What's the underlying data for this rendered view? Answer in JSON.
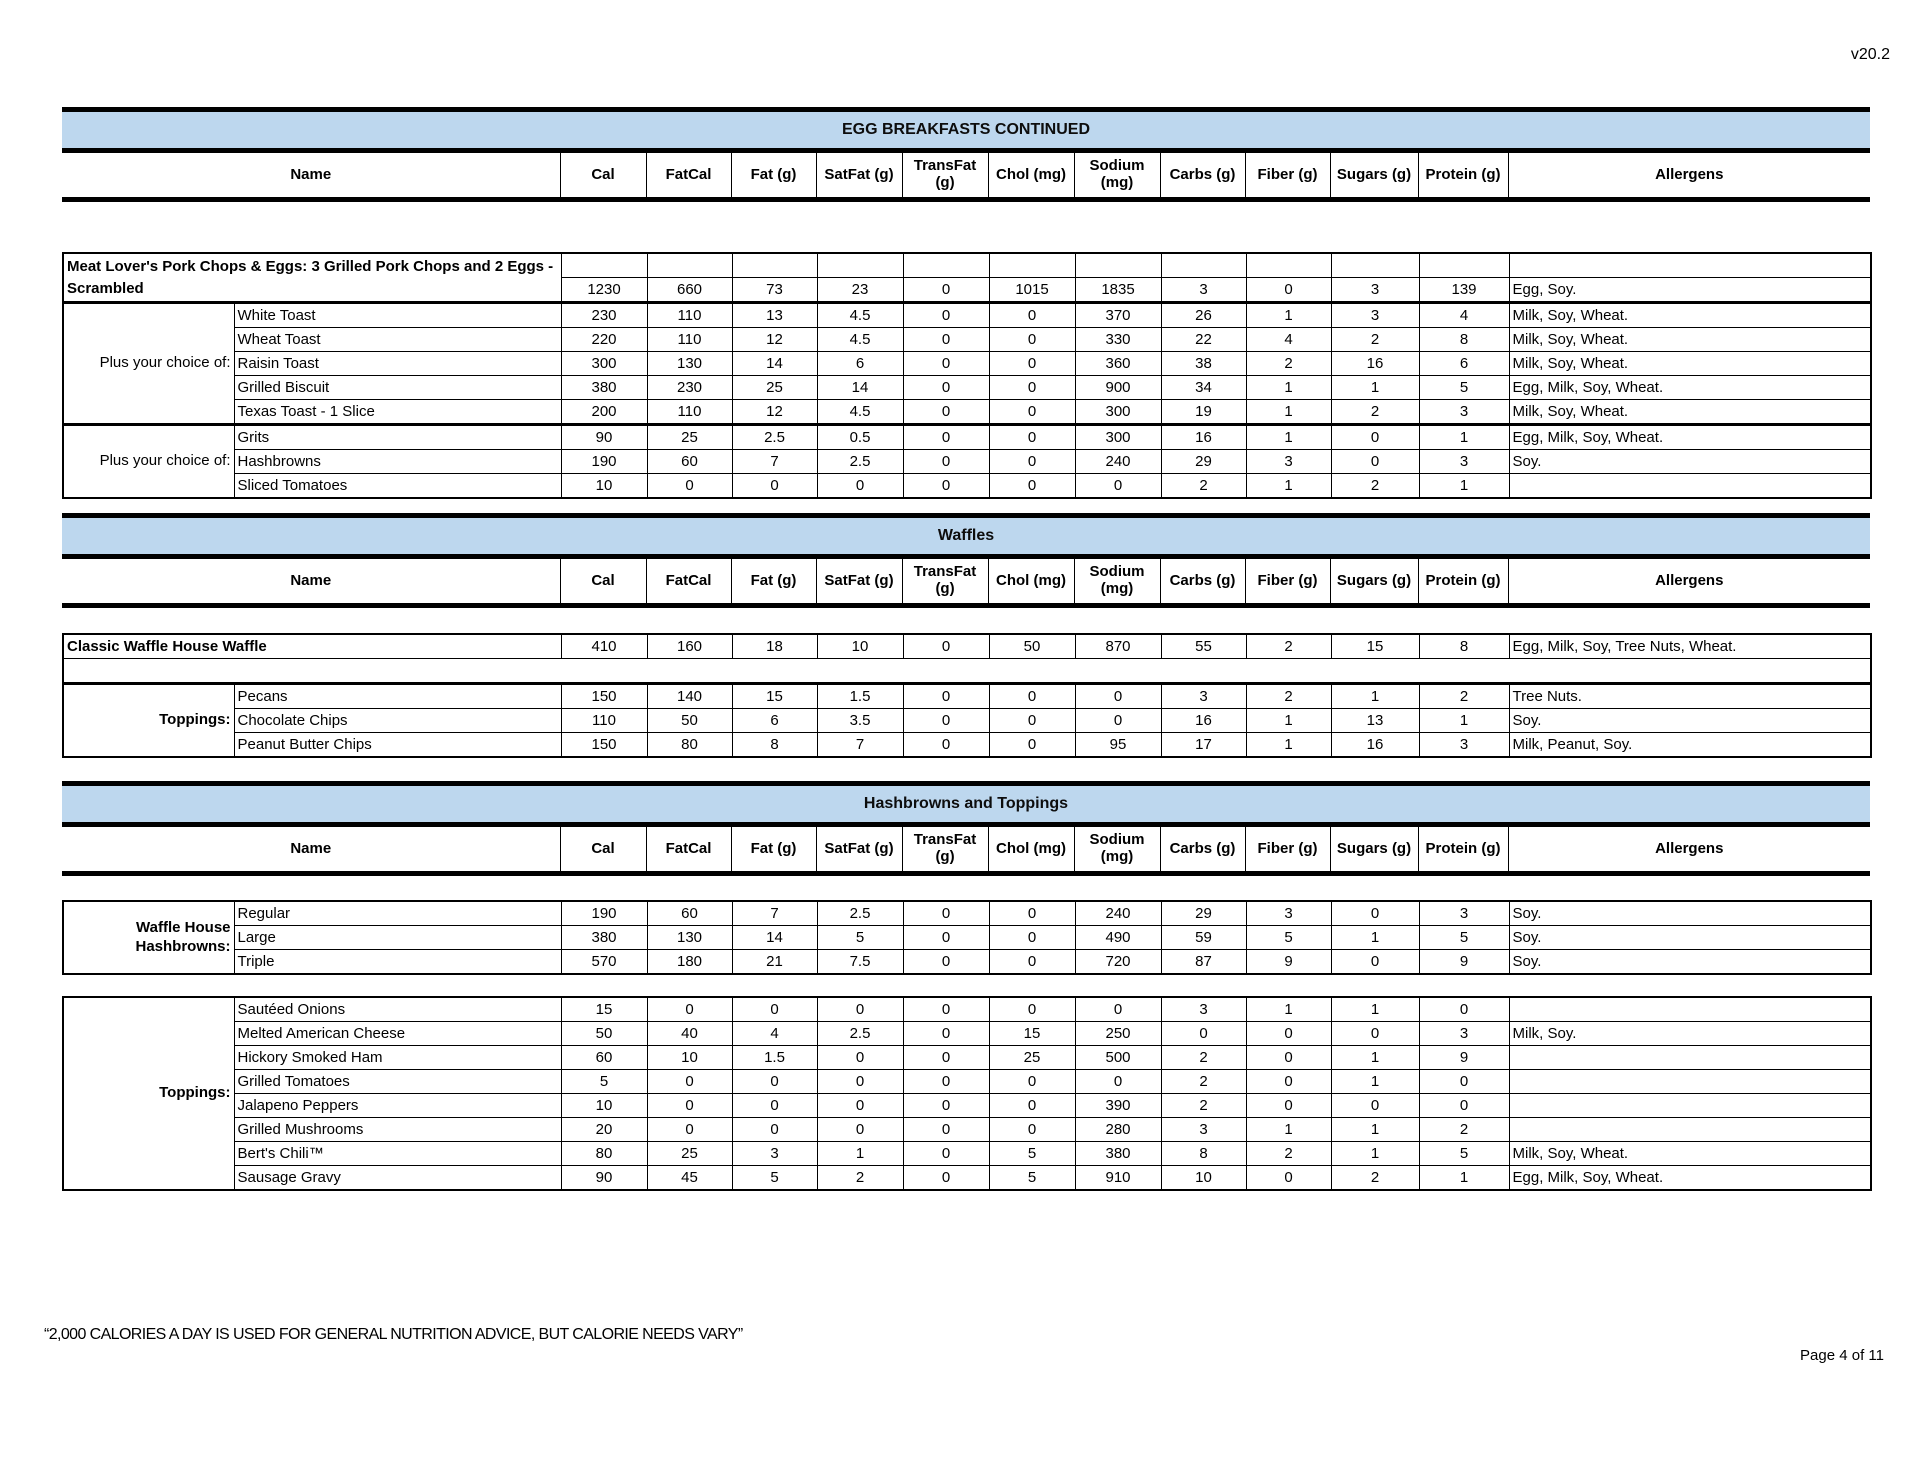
{
  "page": {
    "version": "v20.2",
    "footer_quote": "“2,000 CALORIES A DAY IS USED FOR GENERAL NUTRITION ADVICE, BUT CALORIE NEEDS VARY”",
    "page_number": "Page 4 of 11"
  },
  "colors": {
    "section_bar_blue": "#BDD7EE",
    "border_black": "#000000"
  },
  "table_columns": {
    "name": "Name",
    "nutrients": [
      "Cal",
      "FatCal",
      "Fat (g)",
      "SatFat (g)",
      "TransFat (g)",
      "Chol (mg)",
      "Sodium (mg)",
      "Carbs (g)",
      "Fiber (g)",
      "Sugars (g)",
      "Protein (g)"
    ],
    "allergens": "Allergens"
  },
  "sections": [
    {
      "id": "egg-breakfasts-continued",
      "title": "EGG BREAKFASTS CONTINUED",
      "tables": [
        {
          "groups": [
            {
              "kind": "item",
              "rows": [
                {
                  "name": "Meat Lover's Pork Chops & Eggs: 3 Grilled Pork Chops and 2 Eggs - Scrambled",
                  "tall": true,
                  "bold": true,
                  "values": [
                    "1230",
                    "660",
                    "73",
                    "23",
                    "0",
                    "1015",
                    "1835",
                    "3",
                    "0",
                    "3",
                    "139"
                  ],
                  "allergens": "Egg, Soy."
                }
              ]
            },
            {
              "kind": "labeled",
              "label": "Plus your choice of:",
              "label_bold": false,
              "rows": [
                {
                  "name": "White Toast",
                  "values": [
                    "230",
                    "110",
                    "13",
                    "4.5",
                    "0",
                    "0",
                    "370",
                    "26",
                    "1",
                    "3",
                    "4"
                  ],
                  "allergens": "Milk, Soy, Wheat."
                },
                {
                  "name": "Wheat Toast",
                  "values": [
                    "220",
                    "110",
                    "12",
                    "4.5",
                    "0",
                    "0",
                    "330",
                    "22",
                    "4",
                    "2",
                    "8"
                  ],
                  "allergens": "Milk, Soy, Wheat."
                },
                {
                  "name": "Raisin Toast",
                  "values": [
                    "300",
                    "130",
                    "14",
                    "6",
                    "0",
                    "0",
                    "360",
                    "38",
                    "2",
                    "16",
                    "6"
                  ],
                  "allergens": "Milk, Soy, Wheat."
                },
                {
                  "name": "Grilled Biscuit",
                  "values": [
                    "380",
                    "230",
                    "25",
                    "14",
                    "0",
                    "0",
                    "900",
                    "34",
                    "1",
                    "1",
                    "5"
                  ],
                  "allergens": "Egg, Milk, Soy, Wheat."
                },
                {
                  "name": "Texas Toast - 1 Slice",
                  "values": [
                    "200",
                    "110",
                    "12",
                    "4.5",
                    "0",
                    "0",
                    "300",
                    "19",
                    "1",
                    "2",
                    "3"
                  ],
                  "allergens": "Milk, Soy, Wheat."
                }
              ]
            },
            {
              "kind": "labeled",
              "label": "Plus your choice of:",
              "label_bold": false,
              "rows": [
                {
                  "name": "Grits",
                  "values": [
                    "90",
                    "25",
                    "2.5",
                    "0.5",
                    "0",
                    "0",
                    "300",
                    "16",
                    "1",
                    "0",
                    "1"
                  ],
                  "allergens": "Egg, Milk, Soy, Wheat."
                },
                {
                  "name": "Hashbrowns",
                  "values": [
                    "190",
                    "60",
                    "7",
                    "2.5",
                    "0",
                    "0",
                    "240",
                    "29",
                    "3",
                    "0",
                    "3"
                  ],
                  "allergens": "Soy."
                },
                {
                  "name": "Sliced Tomatoes",
                  "values": [
                    "10",
                    "0",
                    "0",
                    "0",
                    "0",
                    "0",
                    "0",
                    "2",
                    "1",
                    "2",
                    "1"
                  ],
                  "allergens": ""
                }
              ]
            }
          ]
        }
      ]
    },
    {
      "id": "waffles",
      "title": "Waffles",
      "tables": [
        {
          "groups": [
            {
              "kind": "item",
              "rows": [
                {
                  "name": "Classic Waffle House Waffle",
                  "tall": false,
                  "bold": true,
                  "values": [
                    "410",
                    "160",
                    "18",
                    "10",
                    "0",
                    "50",
                    "870",
                    "55",
                    "2",
                    "15",
                    "8"
                  ],
                  "allergens": "Egg, Milk, Soy, Tree Nuts, Wheat."
                }
              ]
            },
            {
              "kind": "spacer"
            },
            {
              "kind": "labeled",
              "label": "Toppings:",
              "label_bold": true,
              "rows": [
                {
                  "name": "Pecans",
                  "values": [
                    "150",
                    "140",
                    "15",
                    "1.5",
                    "0",
                    "0",
                    "0",
                    "3",
                    "2",
                    "1",
                    "2"
                  ],
                  "allergens": "Tree Nuts."
                },
                {
                  "name": "Chocolate Chips",
                  "values": [
                    "110",
                    "50",
                    "6",
                    "3.5",
                    "0",
                    "0",
                    "0",
                    "16",
                    "1",
                    "13",
                    "1"
                  ],
                  "allergens": "Soy."
                },
                {
                  "name": "Peanut Butter Chips",
                  "values": [
                    "150",
                    "80",
                    "8",
                    "7",
                    "0",
                    "0",
                    "95",
                    "17",
                    "1",
                    "16",
                    "3"
                  ],
                  "allergens": "Milk, Peanut, Soy."
                }
              ]
            }
          ]
        }
      ]
    },
    {
      "id": "hashbrowns-and-toppings",
      "title": "Hashbrowns and Toppings",
      "tables": [
        {
          "groups": [
            {
              "kind": "labeled",
              "label": "Waffle House Hashbrowns:",
              "label_bold": true,
              "rows": [
                {
                  "name": "Regular",
                  "values": [
                    "190",
                    "60",
                    "7",
                    "2.5",
                    "0",
                    "0",
                    "240",
                    "29",
                    "3",
                    "0",
                    "3"
                  ],
                  "allergens": "Soy."
                },
                {
                  "name": "Large",
                  "values": [
                    "380",
                    "130",
                    "14",
                    "5",
                    "0",
                    "0",
                    "490",
                    "59",
                    "5",
                    "1",
                    "5"
                  ],
                  "allergens": "Soy."
                },
                {
                  "name": "Triple",
                  "values": [
                    "570",
                    "180",
                    "21",
                    "7.5",
                    "0",
                    "0",
                    "720",
                    "87",
                    "9",
                    "0",
                    "9"
                  ],
                  "allergens": "Soy."
                }
              ]
            }
          ]
        },
        {
          "groups": [
            {
              "kind": "labeled",
              "label": "Toppings:",
              "label_bold": true,
              "rows": [
                {
                  "name": "Sautéed Onions",
                  "values": [
                    "15",
                    "0",
                    "0",
                    "0",
                    "0",
                    "0",
                    "0",
                    "3",
                    "1",
                    "1",
                    "0"
                  ],
                  "allergens": ""
                },
                {
                  "name": "Melted American Cheese",
                  "values": [
                    "50",
                    "40",
                    "4",
                    "2.5",
                    "0",
                    "15",
                    "250",
                    "0",
                    "0",
                    "0",
                    "3"
                  ],
                  "allergens": "Milk, Soy."
                },
                {
                  "name": "Hickory Smoked Ham",
                  "values": [
                    "60",
                    "10",
                    "1.5",
                    "0",
                    "0",
                    "25",
                    "500",
                    "2",
                    "0",
                    "1",
                    "9"
                  ],
                  "allergens": ""
                },
                {
                  "name": "Grilled Tomatoes",
                  "values": [
                    "5",
                    "0",
                    "0",
                    "0",
                    "0",
                    "0",
                    "0",
                    "2",
                    "0",
                    "1",
                    "0"
                  ],
                  "allergens": ""
                },
                {
                  "name": "Jalapeno Peppers",
                  "values": [
                    "10",
                    "0",
                    "0",
                    "0",
                    "0",
                    "0",
                    "390",
                    "2",
                    "0",
                    "0",
                    "0"
                  ],
                  "allergens": ""
                },
                {
                  "name": "Grilled Mushrooms",
                  "values": [
                    "20",
                    "0",
                    "0",
                    "0",
                    "0",
                    "0",
                    "280",
                    "3",
                    "1",
                    "1",
                    "2"
                  ],
                  "allergens": ""
                },
                {
                  "name": "Bert's Chili™",
                  "values": [
                    "80",
                    "25",
                    "3",
                    "1",
                    "0",
                    "5",
                    "380",
                    "8",
                    "2",
                    "1",
                    "5"
                  ],
                  "allergens": "Milk, Soy, Wheat."
                },
                {
                  "name": "Sausage Gravy",
                  "values": [
                    "90",
                    "45",
                    "5",
                    "2",
                    "0",
                    "5",
                    "910",
                    "10",
                    "0",
                    "2",
                    "1"
                  ],
                  "allergens": "Egg, Milk, Soy, Wheat."
                }
              ]
            }
          ]
        }
      ]
    }
  ]
}
